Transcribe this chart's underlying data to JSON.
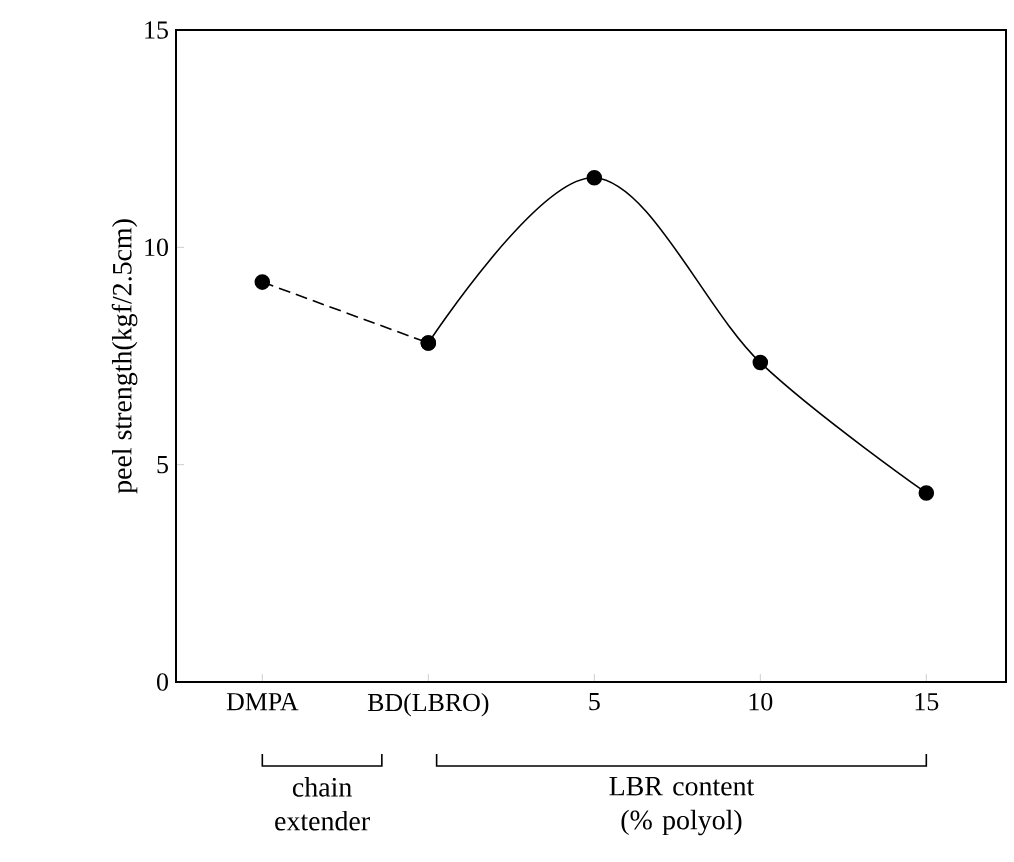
{
  "chart_data": {
    "type": "line",
    "ylabel": "peel strength(kgf/2.5cm)",
    "categories": [
      "DMPA",
      "BD(LBRO)",
      "5",
      "10",
      "15"
    ],
    "series": [
      {
        "color": "#000000",
        "values": [
          9.2,
          7.8,
          null,
          null,
          null
        ],
        "line_style": "dashed"
      },
      {
        "color": "#000000",
        "values": [
          null,
          7.8,
          11.6,
          7.35,
          4.35
        ],
        "line_style": "solid"
      }
    ],
    "annotations": [
      "chain extender",
      "LBR content (% polyol)"
    ],
    "ylim": [
      0,
      15
    ],
    "yticks": [
      0,
      5,
      10,
      15
    ],
    "marker": "circle"
  }
}
